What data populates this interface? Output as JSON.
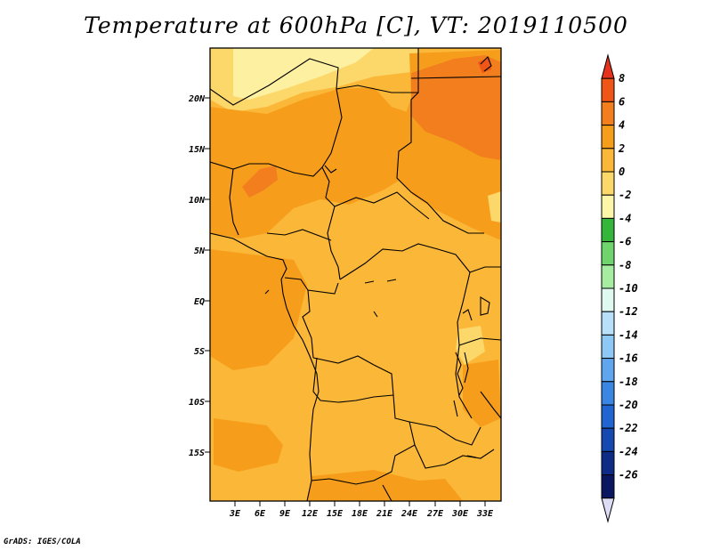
{
  "title": "Temperature at 600hPa [C], VT: 2019110500",
  "credit": "GrADS: IGES/COLA",
  "map": {
    "lat_ticks": [
      "20N",
      "15N",
      "10N",
      "5N",
      "EQ",
      "5S",
      "10S",
      "15S"
    ],
    "lon_ticks": [
      "3E",
      "6E",
      "9E",
      "12E",
      "15E",
      "18E",
      "21E",
      "24E",
      "27E",
      "30E",
      "33E"
    ]
  },
  "colorbar": {
    "labels": [
      "8",
      "6",
      "4",
      "2",
      "0",
      "-2",
      "-4",
      "-6",
      "-8",
      "-10",
      "-12",
      "-14",
      "-16",
      "-18",
      "-20",
      "-22",
      "-24",
      "-26"
    ],
    "colors": [
      "#e5321e",
      "#ee5516",
      "#f27e1e",
      "#f69e1c",
      "#fbb737",
      "#fcd76a",
      "#fdf5a8",
      "#35b53a",
      "#6fd46c",
      "#a6eca1",
      "#dff8f0",
      "#b8e0fa",
      "#8ec8f5",
      "#5fa6ee",
      "#3b86e2",
      "#2165d0",
      "#1649b0",
      "#0e2b85",
      "#0a1660",
      "#dcdcf5"
    ]
  }
}
